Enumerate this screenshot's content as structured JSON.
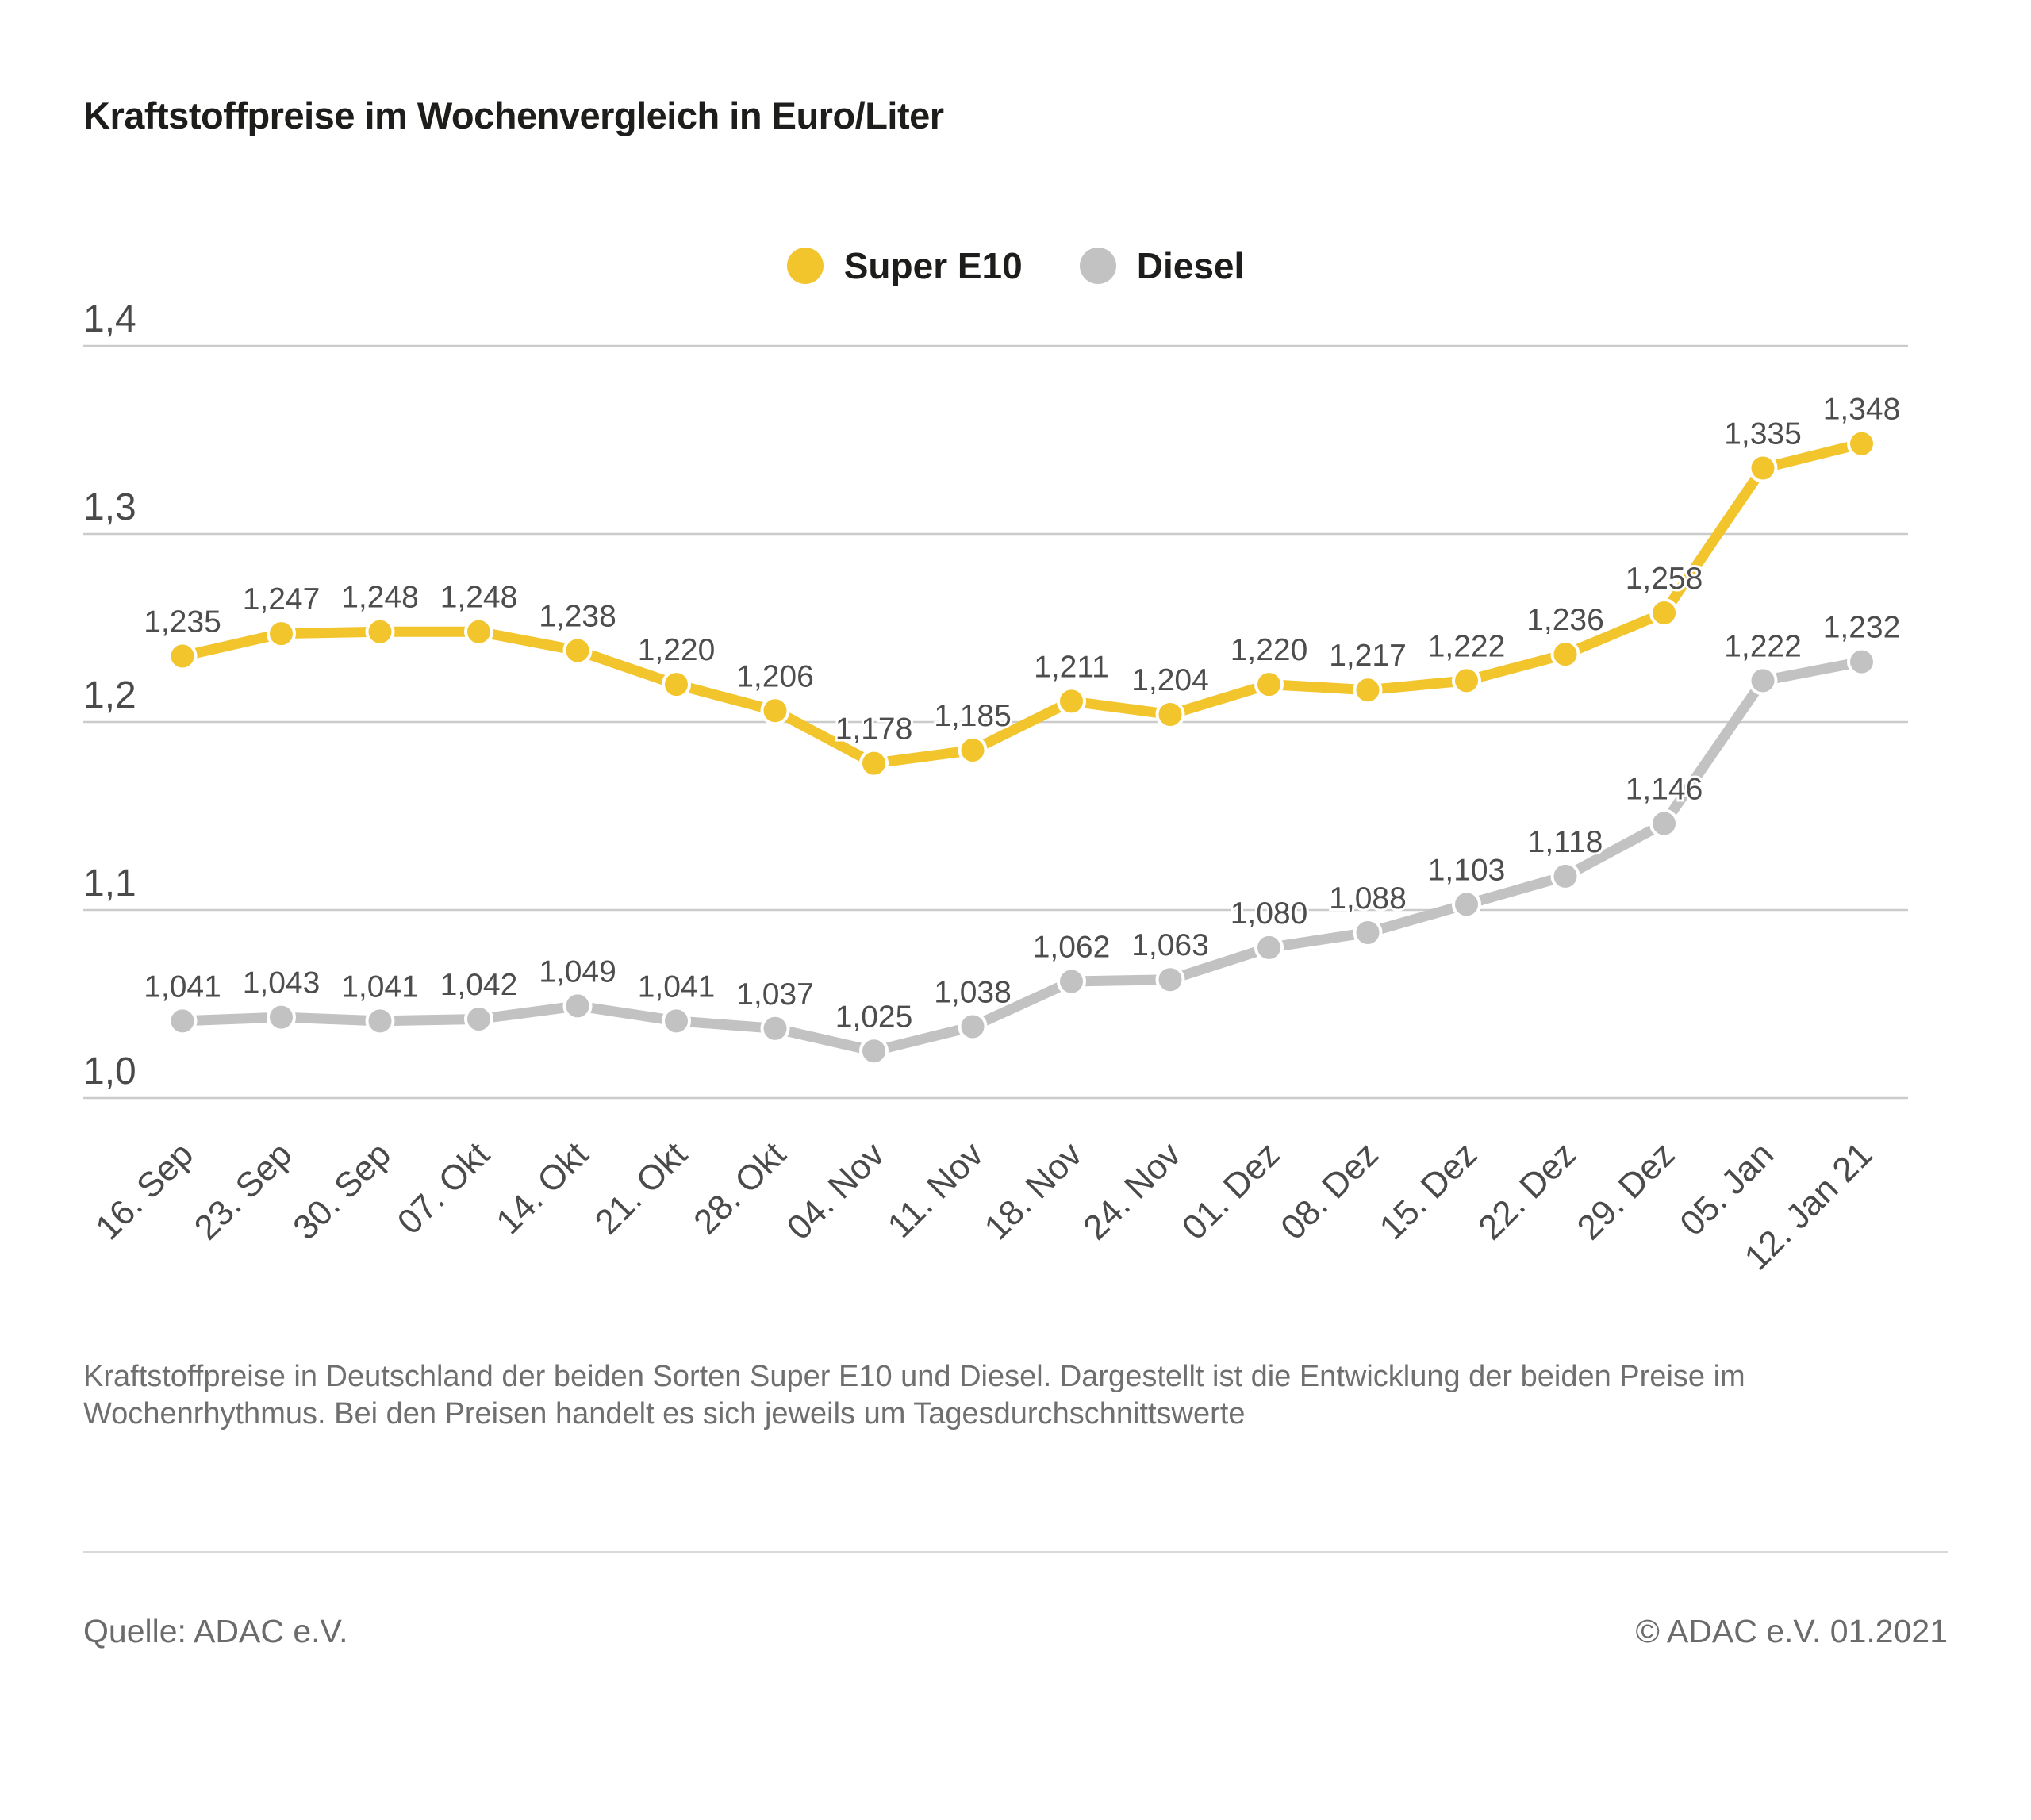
{
  "title": "Kraftstoffpreise im Wochenvergleich in Euro/Liter",
  "chart_data": {
    "type": "line",
    "title": "Kraftstoffpreise im Wochenvergleich in Euro/Liter",
    "categories": [
      "16. Sep",
      "23. Sep",
      "30. Sep",
      "07. Okt",
      "14. Okt",
      "21. Okt",
      "28. Okt",
      "04. Nov",
      "11. Nov",
      "18. Nov",
      "24. Nov",
      "01. Dez",
      "08. Dez",
      "15. Dez",
      "22. Dez",
      "29. Dez",
      "05. Jan",
      "12. Jan 21"
    ],
    "series": [
      {
        "name": "Super E10",
        "color": "#F3C52D",
        "values": [
          1.235,
          1.247,
          1.248,
          1.248,
          1.238,
          1.22,
          1.206,
          1.178,
          1.185,
          1.211,
          1.204,
          1.22,
          1.217,
          1.222,
          1.236,
          1.258,
          1.335,
          1.348
        ]
      },
      {
        "name": "Diesel",
        "color": "#C2C2C2",
        "values": [
          1.041,
          1.043,
          1.041,
          1.042,
          1.049,
          1.041,
          1.037,
          1.025,
          1.038,
          1.062,
          1.063,
          1.08,
          1.088,
          1.103,
          1.118,
          1.146,
          1.222,
          1.232
        ]
      }
    ],
    "ylabel": "",
    "xlabel": "",
    "ylim": [
      1.0,
      1.4
    ],
    "yticks": {
      "values": [
        1.4,
        1.3,
        1.2,
        1.1,
        1.0
      ],
      "labels": [
        "1,4",
        "1,3",
        "1,2",
        "1,1",
        "1,0"
      ]
    },
    "grid": true,
    "legend_position": "top-center",
    "decimal_separator": ",",
    "colors": {
      "grid": "#CBCBCB",
      "value_label": "#4D4D4D",
      "tick_label": "#4A4A4A"
    }
  },
  "caption": {
    "line1": "Kraftstoffpreise in Deutschland der beiden Sorten Super E10 und Diesel. Dargestellt ist die Entwicklung der beiden Preise im",
    "line2": "Wochenrhythmus. Bei den Preisen handelt es sich jeweils um Tagesdurchschnittswerte"
  },
  "footer": {
    "source": "Quelle: ADAC e.V.",
    "copyright": "© ADAC e.V. 01.2021"
  }
}
